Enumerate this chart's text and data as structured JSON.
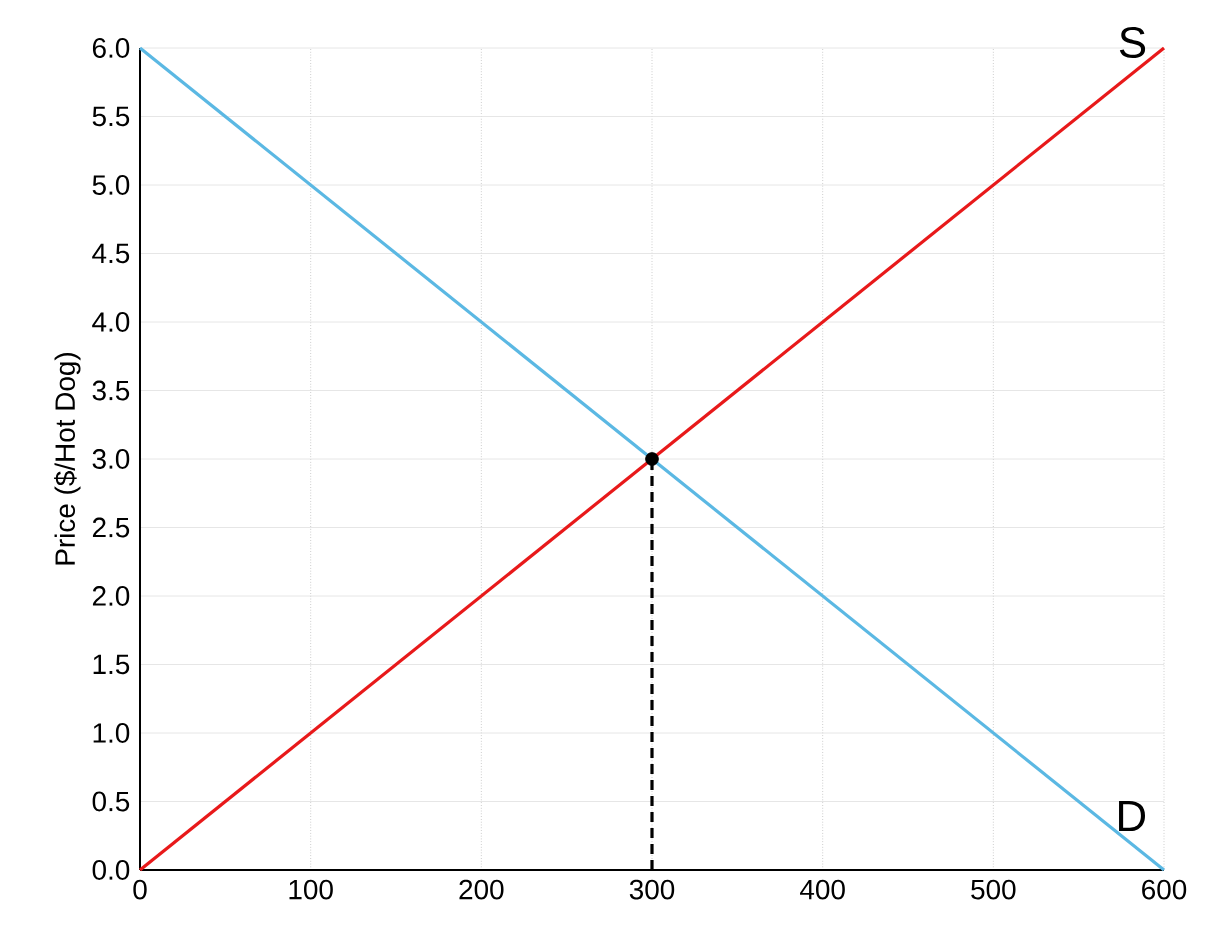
{
  "chart_data": {
    "type": "line",
    "ylabel": "Price ($/Hot Dog)",
    "xlim": [
      0,
      600
    ],
    "ylim": [
      0,
      6
    ],
    "xticks": [
      0,
      100,
      200,
      300,
      400,
      500,
      600
    ],
    "yticks": [
      {
        "value": 0,
        "label": "0.0"
      },
      {
        "value": 0.5,
        "label": "0.5"
      },
      {
        "value": 1,
        "label": "1.0"
      },
      {
        "value": 1.5,
        "label": "1.5"
      },
      {
        "value": 2,
        "label": "2.0"
      },
      {
        "value": 2.5,
        "label": "2.5"
      },
      {
        "value": 3,
        "label": "3.0"
      },
      {
        "value": 3.5,
        "label": "3.5"
      },
      {
        "value": 4,
        "label": "4.0"
      },
      {
        "value": 4.5,
        "label": "4.5"
      },
      {
        "value": 5,
        "label": "5.0"
      },
      {
        "value": 5.5,
        "label": "5.5"
      },
      {
        "value": 6,
        "label": "6.0"
      }
    ],
    "grid": true,
    "legend": false,
    "series": [
      {
        "name": "D",
        "color": "#5bb8e3",
        "x": [
          0,
          600
        ],
        "values": [
          6,
          0
        ]
      },
      {
        "name": "S",
        "color": "#e8191a",
        "x": [
          0,
          600
        ],
        "values": [
          0,
          6
        ]
      },
      {
        "type": "line",
        "line_style": "dashed",
        "color": "#000000",
        "x": [
          300,
          300
        ],
        "values": [
          0,
          3
        ]
      },
      {
        "type": "scatter",
        "marker": "circle",
        "color": "#000000",
        "x": [
          300
        ],
        "values": [
          3
        ]
      }
    ]
  }
}
